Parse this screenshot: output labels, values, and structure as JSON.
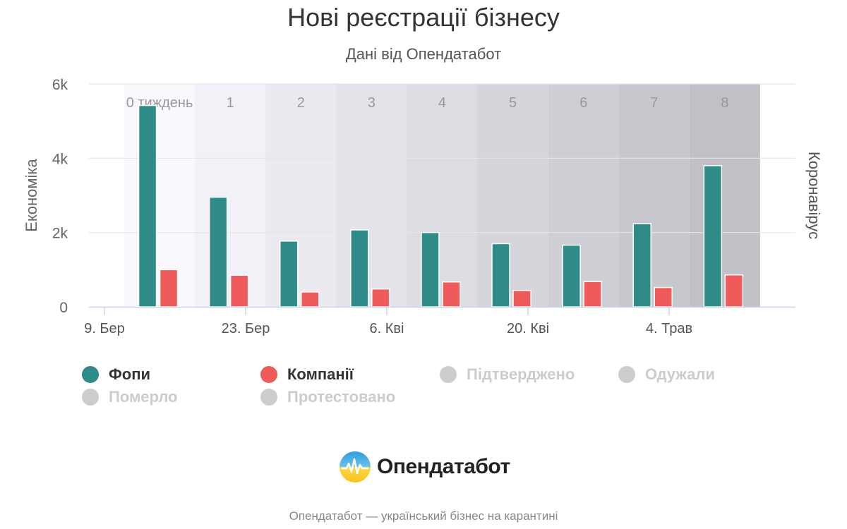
{
  "title": "Нові реєстрації бізнесу",
  "subtitle": "Дані від Опендатабот",
  "colors": {
    "fop": "#2e8b88",
    "companies": "#ef5b5b",
    "inactive": "#cccccc",
    "grid": "#e6e6e6",
    "axis": "#ccd6eb"
  },
  "chart_data": {
    "type": "bar",
    "title": "Нові реєстрації бізнесу",
    "subtitle": "Дані від Опендатабот",
    "ylabel": "Економіка",
    "ylabel_right": "Коронавірус",
    "ylim": [
      0,
      6000
    ],
    "yticks": [
      {
        "value": 0,
        "label": "0"
      },
      {
        "value": 2000,
        "label": "2k"
      },
      {
        "value": 4000,
        "label": "4k"
      },
      {
        "value": 6000,
        "label": "6k"
      }
    ],
    "x_tick_labels": [
      "9. Бер",
      "23. Бер",
      "6. Кві",
      "20. Кві",
      "4. Трав"
    ],
    "categories": [
      "0 тиждень",
      "1",
      "2",
      "3",
      "4",
      "5",
      "6",
      "7",
      "8"
    ],
    "series": [
      {
        "name": "Фопи",
        "values": [
          5420,
          2950,
          1770,
          2070,
          2000,
          1700,
          1660,
          2240,
          3800
        ]
      },
      {
        "name": "Компанії",
        "values": [
          1000,
          850,
          400,
          480,
          670,
          440,
          680,
          520,
          860
        ]
      }
    ],
    "legend_placement": "bottom",
    "grid": true
  },
  "legend": [
    {
      "name": "Фопи",
      "active": true
    },
    {
      "name": "Компанії",
      "active": true
    },
    {
      "name": "Підтверджено",
      "active": false
    },
    {
      "name": "Одужали",
      "active": false
    },
    {
      "name": "Померло",
      "active": false
    },
    {
      "name": "Протестовано",
      "active": false
    }
  ],
  "logo": {
    "text": "Опендатабот"
  },
  "footer": "Опендатабот — український бізнес на карантині"
}
